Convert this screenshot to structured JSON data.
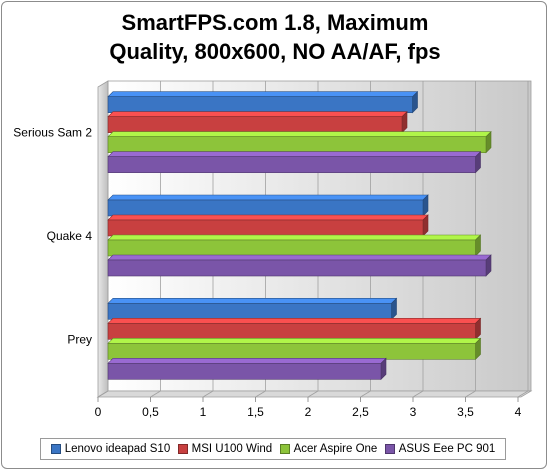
{
  "chart_data": {
    "type": "bar",
    "orientation": "horizontal",
    "title": "SmartFPS.com 1.8, Maximum Quality, 800x600, NO AA/AF, fps",
    "title_lines": [
      "SmartFPS.com 1.8, Maximum",
      "Quality, 800x600, NO AA/AF, fps"
    ],
    "categories": [
      "Serious Sam 2",
      "Quake 4",
      "Prey"
    ],
    "series": [
      {
        "name": "Lenovo ideapad S10",
        "color": "#3a75c4",
        "values": [
          2.9,
          3.0,
          2.7
        ]
      },
      {
        "name": "MSI U100 Wind",
        "color": "#c84040",
        "values": [
          2.8,
          3.0,
          3.5
        ]
      },
      {
        "name": "Acer Aspire One",
        "color": "#8dc43a",
        "values": [
          3.6,
          3.5,
          3.5
        ]
      },
      {
        "name": "ASUS Eee PC 901",
        "color": "#7a55a8",
        "values": [
          3.5,
          3.6,
          2.6
        ]
      }
    ],
    "xlim": [
      0,
      4
    ],
    "xticks": [
      "0",
      "0,5",
      "1",
      "1,5",
      "2",
      "2,5",
      "3",
      "3,5",
      "4"
    ],
    "grid": true,
    "legend_position": "bottom"
  }
}
